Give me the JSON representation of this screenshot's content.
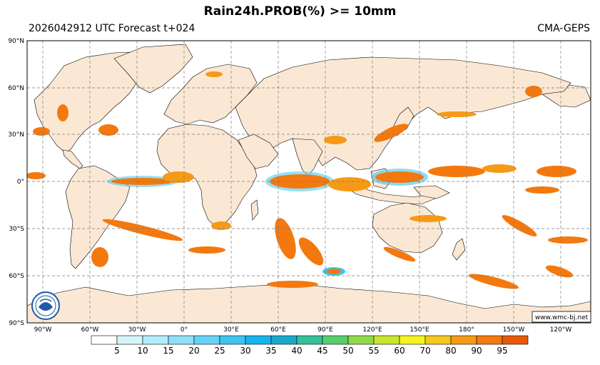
{
  "header": {
    "title": "Rain24h.PROB(%) >= 10mm",
    "run_info": "2026042912 UTC Forecast t+024",
    "model": "CMA-GEPS"
  },
  "map": {
    "lat_labels": [
      "90°N",
      "60°N",
      "30°N",
      "0°",
      "30°S",
      "60°S",
      "90°S"
    ],
    "lon_labels": [
      "90°W",
      "60°W",
      "30°W",
      "0°",
      "30°E",
      "60°E",
      "90°E",
      "120°E",
      "150°E",
      "180°",
      "150°W",
      "120°W"
    ],
    "credit": "www.wmc-bj.net",
    "colors": {
      "land": "#fbe8d4",
      "ocean": "#ffffff",
      "grid": "#7a7a7a"
    }
  },
  "colorbar": {
    "labels": [
      "5",
      "10",
      "15",
      "20",
      "25",
      "30",
      "35",
      "40",
      "45",
      "50",
      "55",
      "60",
      "70",
      "80",
      "90",
      "95"
    ],
    "colors": [
      "#ffffff",
      "#d6f5fb",
      "#b4ecfb",
      "#8fe0f7",
      "#66d3f5",
      "#3fc4f2",
      "#17b4ef",
      "#1aa8cc",
      "#34c09a",
      "#5acd6e",
      "#8fd94a",
      "#c8e62e",
      "#f4f41e",
      "#f4c81c",
      "#f59a16",
      "#f3790f",
      "#e85a08"
    ]
  }
}
